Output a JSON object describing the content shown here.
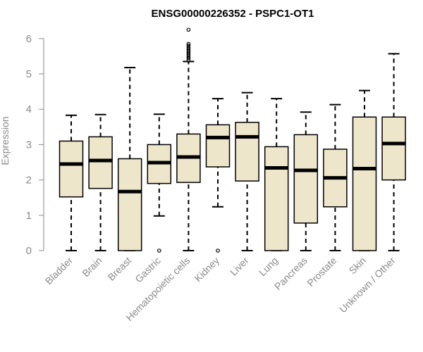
{
  "chart_data": {
    "type": "boxplot",
    "title": "ENSG00000226352 - PSPC1-OT1",
    "xlabel": "",
    "ylabel": "Expression",
    "ylim": [
      0,
      6
    ],
    "yticks": [
      0,
      1,
      2,
      3,
      4,
      5,
      6
    ],
    "grid": false,
    "colors": {
      "box_fill": "#ede6ca",
      "stroke": "#000000",
      "axis": "#8a8a8a",
      "label": "#8a8a8a"
    },
    "categories": [
      "Bladder",
      "Brain",
      "Breast",
      "Gastric",
      "Hematopoietic cells",
      "Kidney",
      "Liver",
      "Lung",
      "Pancreas",
      "Prostate",
      "Skin",
      "Unknown / Other"
    ],
    "boxes": [
      {
        "name": "Bladder",
        "whisker_low": 0,
        "q1": 1.52,
        "median": 2.45,
        "q3": 3.1,
        "whisker_high": 3.83,
        "outliers": []
      },
      {
        "name": "Brain",
        "whisker_low": 0,
        "q1": 1.76,
        "median": 2.55,
        "q3": 3.22,
        "whisker_high": 3.85,
        "outliers": []
      },
      {
        "name": "Breast",
        "whisker_low": 0,
        "q1": 0,
        "median": 1.67,
        "q3": 2.6,
        "whisker_high": 5.18,
        "outliers": []
      },
      {
        "name": "Gastric",
        "whisker_low": 0.98,
        "q1": 1.9,
        "median": 2.49,
        "q3": 3.0,
        "whisker_high": 3.86,
        "outliers": [
          0
        ]
      },
      {
        "name": "Hematopoietic cells",
        "whisker_low": 0,
        "q1": 1.93,
        "median": 2.65,
        "q3": 3.3,
        "whisker_high": 5.35,
        "outliers": [
          5.4,
          5.45,
          5.5,
          5.55,
          5.6,
          5.65,
          5.7,
          5.75,
          5.8,
          5.85,
          6.25
        ]
      },
      {
        "name": "Kidney",
        "whisker_low": 1.24,
        "q1": 2.37,
        "median": 3.2,
        "q3": 3.56,
        "whisker_high": 4.3,
        "outliers": [
          0
        ]
      },
      {
        "name": "Liver",
        "whisker_low": 0,
        "q1": 1.97,
        "median": 3.22,
        "q3": 3.63,
        "whisker_high": 4.47,
        "outliers": []
      },
      {
        "name": "Lung",
        "whisker_low": 0,
        "q1": 0,
        "median": 2.34,
        "q3": 2.94,
        "whisker_high": 4.3,
        "outliers": []
      },
      {
        "name": "Pancreas",
        "whisker_low": 0,
        "q1": 0.78,
        "median": 2.27,
        "q3": 3.28,
        "whisker_high": 3.92,
        "outliers": []
      },
      {
        "name": "Prostate",
        "whisker_low": 0,
        "q1": 1.24,
        "median": 2.06,
        "q3": 2.87,
        "whisker_high": 4.13,
        "outliers": []
      },
      {
        "name": "Skin",
        "whisker_low": 0,
        "q1": 0,
        "median": 2.32,
        "q3": 3.78,
        "whisker_high": 4.53,
        "outliers": []
      },
      {
        "name": "Unknown / Other",
        "whisker_low": 0,
        "q1": 2.0,
        "median": 3.03,
        "q3": 3.78,
        "whisker_high": 5.57,
        "outliers": []
      }
    ]
  }
}
